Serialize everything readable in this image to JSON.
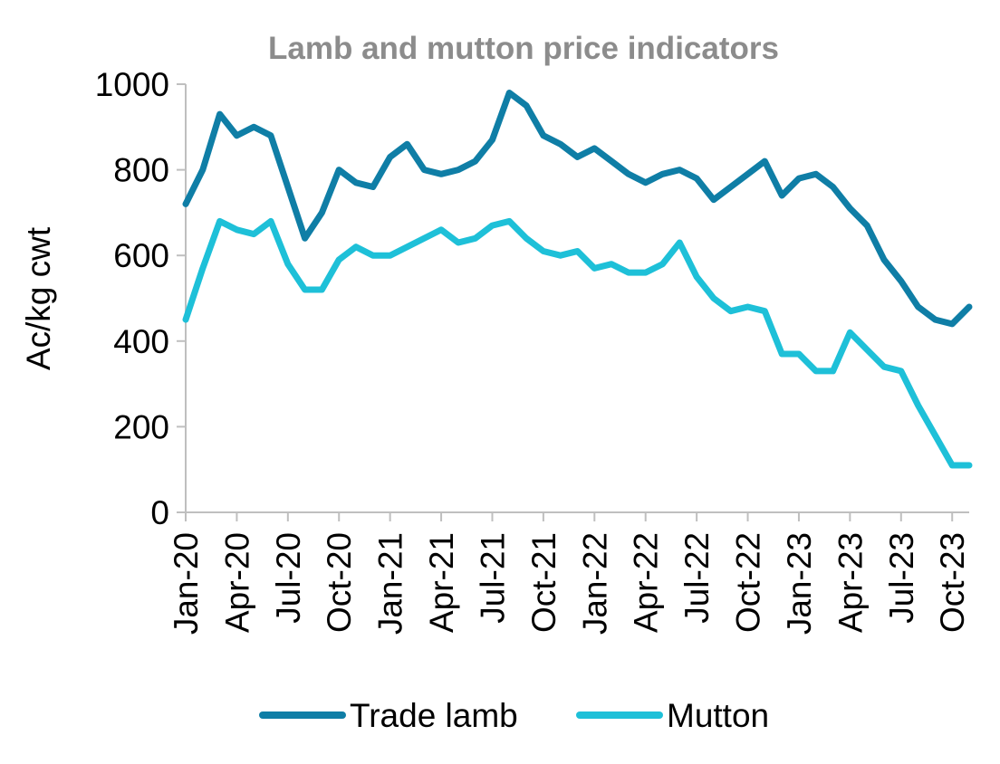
{
  "chart_data": {
    "type": "line",
    "title": "Lamb and mutton price indicators",
    "xlabel": "",
    "ylabel": "Ac/kg cwt",
    "ylim": [
      0,
      1000
    ],
    "yticks": [
      "0",
      "200",
      "400",
      "600",
      "800",
      "1000"
    ],
    "x_tick_labels": [
      "Jan-20",
      "Apr-20",
      "Jul-20",
      "Oct-20",
      "Jan-21",
      "Apr-21",
      "Jul-21",
      "Oct-21",
      "Jan-22",
      "Apr-22",
      "Jul-22",
      "Oct-22",
      "Jan-23",
      "Apr-23",
      "Jul-23",
      "Oct-23"
    ],
    "x_range": [
      "2020-01",
      "2023-11"
    ],
    "legend_position": "bottom",
    "grid": false,
    "series": [
      {
        "name": "Trade lamb",
        "color": "#0f7ea6",
        "x": [
          "2020-01",
          "2020-02",
          "2020-03",
          "2020-04",
          "2020-05",
          "2020-06",
          "2020-07",
          "2020-08",
          "2020-09",
          "2020-10",
          "2020-11",
          "2020-12",
          "2021-01",
          "2021-02",
          "2021-03",
          "2021-04",
          "2021-05",
          "2021-06",
          "2021-07",
          "2021-08",
          "2021-09",
          "2021-10",
          "2021-11",
          "2021-12",
          "2022-01",
          "2022-02",
          "2022-03",
          "2022-04",
          "2022-05",
          "2022-06",
          "2022-07",
          "2022-08",
          "2022-09",
          "2022-10",
          "2022-11",
          "2022-12",
          "2023-01",
          "2023-02",
          "2023-03",
          "2023-04",
          "2023-05",
          "2023-06",
          "2023-07",
          "2023-08",
          "2023-09",
          "2023-10",
          "2023-11"
        ],
        "values": [
          720,
          800,
          930,
          880,
          900,
          880,
          760,
          640,
          700,
          800,
          770,
          760,
          830,
          860,
          800,
          790,
          800,
          820,
          870,
          980,
          950,
          880,
          860,
          830,
          850,
          820,
          790,
          770,
          790,
          800,
          780,
          730,
          760,
          790,
          820,
          740,
          780,
          790,
          760,
          710,
          670,
          590,
          540,
          480,
          450,
          440,
          480
        ]
      },
      {
        "name": "Mutton",
        "color": "#1ec0d8",
        "x": [
          "2020-01",
          "2020-02",
          "2020-03",
          "2020-04",
          "2020-05",
          "2020-06",
          "2020-07",
          "2020-08",
          "2020-09",
          "2020-10",
          "2020-11",
          "2020-12",
          "2021-01",
          "2021-02",
          "2021-03",
          "2021-04",
          "2021-05",
          "2021-06",
          "2021-07",
          "2021-08",
          "2021-09",
          "2021-10",
          "2021-11",
          "2021-12",
          "2022-01",
          "2022-02",
          "2022-03",
          "2022-04",
          "2022-05",
          "2022-06",
          "2022-07",
          "2022-08",
          "2022-09",
          "2022-10",
          "2022-11",
          "2022-12",
          "2023-01",
          "2023-02",
          "2023-03",
          "2023-04",
          "2023-05",
          "2023-06",
          "2023-07",
          "2023-08",
          "2023-09",
          "2023-10",
          "2023-11"
        ],
        "values": [
          450,
          570,
          680,
          660,
          650,
          680,
          580,
          520,
          520,
          590,
          620,
          600,
          600,
          620,
          640,
          660,
          630,
          640,
          670,
          680,
          640,
          610,
          600,
          610,
          570,
          580,
          560,
          560,
          580,
          630,
          550,
          500,
          470,
          480,
          470,
          370,
          370,
          330,
          330,
          420,
          380,
          340,
          330,
          250,
          180,
          110,
          110
        ]
      }
    ]
  }
}
